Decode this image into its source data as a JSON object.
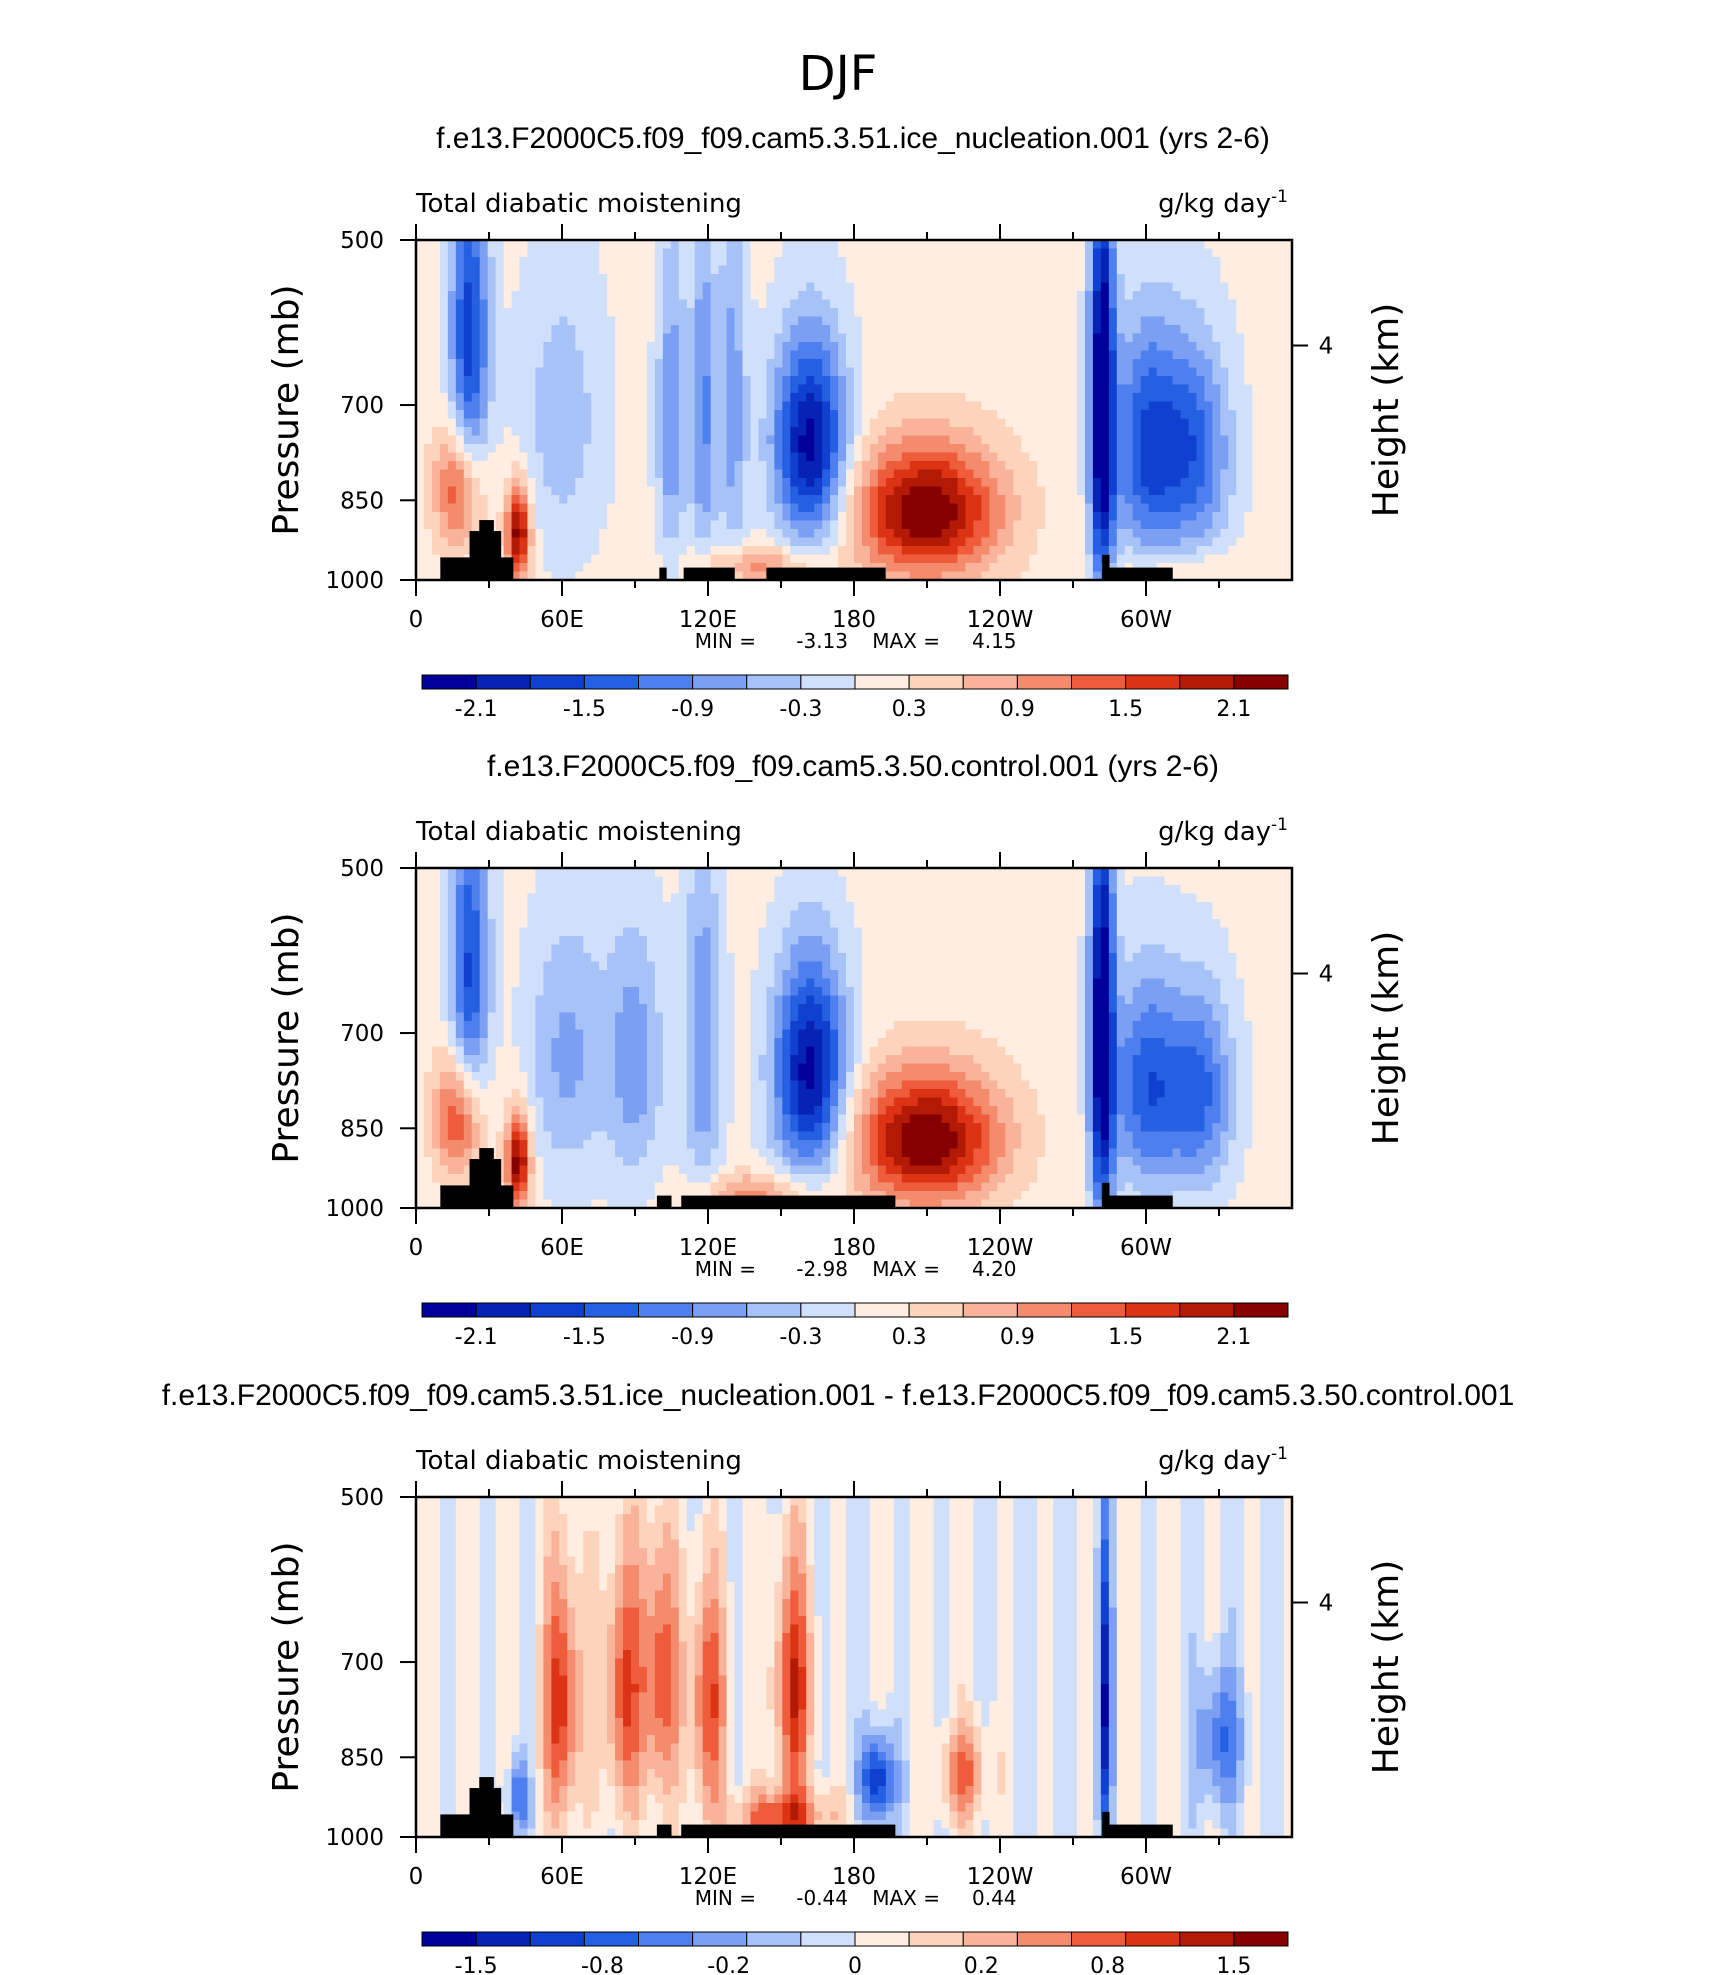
{
  "page_title": "DJF",
  "chart_data": [
    {
      "type": "heatmap",
      "title": "f.e13.F2000C5.f09_f09.cam5.3.51.ice_nucleation.001 (yrs 2-6)",
      "left_string": "Total diabatic moistening",
      "units": "g/kg day",
      "units_exp": "-1",
      "ylabel": "Pressure (mb)",
      "ylabel_right": "Height (km)",
      "yticks": [
        500,
        700,
        850,
        1000
      ],
      "yticks_right": [
        "4"
      ],
      "xticks": [
        "0",
        "60E",
        "120E",
        "180",
        "120W",
        "60W"
      ],
      "min_label": "MIN =",
      "min": "-3.13",
      "max_label": "MAX =",
      "max": "4.15",
      "colorbar_labels": [
        "-2.1",
        "-1.5",
        "-0.9",
        "-0.3",
        "0.3",
        "0.9",
        "1.5",
        "2.1"
      ],
      "colorbar_colors": [
        "#01009a",
        "#0623b5",
        "#0f40cf",
        "#2560e2",
        "#4d7fee",
        "#7a9ff3",
        "#a7c2f7",
        "#d0e0fb",
        "#feede0",
        "#fdd3bc",
        "#f9b39b",
        "#f48b6c",
        "#ee5c3c",
        "#db3314",
        "#b31a06",
        "#870000"
      ],
      "features": [
        {
          "type": "blob",
          "lon": 22,
          "p": 620,
          "dlon": 8,
          "dp": 230,
          "v": -1.8
        },
        {
          "type": "blob",
          "lon": 18,
          "p": 830,
          "dlon": 10,
          "dp": 110,
          "v": 1.6
        },
        {
          "type": "blob",
          "lon": 42,
          "p": 910,
          "dlon": 5,
          "dp": 90,
          "v": 2.2
        },
        {
          "type": "blob",
          "lon": 60,
          "p": 720,
          "dlon": 18,
          "dp": 220,
          "v": -0.6
        },
        {
          "type": "blob",
          "lon": 105,
          "p": 720,
          "dlon": 6,
          "dp": 240,
          "v": -1.0
        },
        {
          "type": "blob",
          "lon": 118,
          "p": 710,
          "dlon": 5,
          "dp": 260,
          "v": -1.1
        },
        {
          "type": "blob",
          "lon": 130,
          "p": 700,
          "dlon": 6,
          "dp": 260,
          "v": -0.9
        },
        {
          "type": "blob",
          "lon": 162,
          "p": 760,
          "dlon": 15,
          "dp": 160,
          "v": -2.4
        },
        {
          "type": "blob",
          "lon": 210,
          "p": 870,
          "dlon": 30,
          "dp": 120,
          "v": 2.3
        },
        {
          "type": "blob",
          "lon": 282,
          "p": 700,
          "dlon": 5,
          "dp": 320,
          "v": -2.8
        },
        {
          "type": "blob",
          "lon": 300,
          "p": 760,
          "dlon": 14,
          "dp": 180,
          "v": -1.6
        },
        {
          "type": "blob",
          "lon": 320,
          "p": 770,
          "dlon": 15,
          "dp": 170,
          "v": -1.4
        },
        {
          "type": "blob",
          "lon": 315,
          "p": 980,
          "dlon": 30,
          "dp": 40,
          "v": 0.4
        },
        {
          "type": "blob",
          "lon": 140,
          "p": 970,
          "dlon": 25,
          "dp": 40,
          "v": 0.9
        }
      ],
      "topography": [
        {
          "lon0": 10,
          "lon1": 40,
          "p": 955
        },
        {
          "lon0": 22,
          "lon1": 35,
          "p": 905
        },
        {
          "lon0": 26,
          "lon1": 32,
          "p": 885
        },
        {
          "lon0": 100,
          "lon1": 103,
          "p": 975
        },
        {
          "lon0": 110,
          "lon1": 131,
          "p": 975
        },
        {
          "lon0": 144,
          "lon1": 193,
          "p": 975
        },
        {
          "lon0": 282,
          "lon1": 311,
          "p": 975
        },
        {
          "lon0": 282,
          "lon1": 285,
          "p": 950
        }
      ]
    },
    {
      "type": "heatmap",
      "title": "f.e13.F2000C5.f09_f09.cam5.3.50.control.001 (yrs 2-6)",
      "left_string": "Total diabatic moistening",
      "units": "g/kg day",
      "units_exp": "-1",
      "ylabel": "Pressure (mb)",
      "ylabel_right": "Height (km)",
      "yticks": [
        500,
        700,
        850,
        1000
      ],
      "yticks_right": [
        "4"
      ],
      "xticks": [
        "0",
        "60E",
        "120E",
        "180",
        "120W",
        "60W"
      ],
      "min_label": "MIN =",
      "min": "-2.98",
      "max_label": "MAX =",
      "max": "4.20",
      "colorbar_labels": [
        "-2.1",
        "-1.5",
        "-0.9",
        "-0.3",
        "0.3",
        "0.9",
        "1.5",
        "2.1"
      ],
      "colorbar_colors": [
        "#01009a",
        "#0623b5",
        "#0f40cf",
        "#2560e2",
        "#4d7fee",
        "#7a9ff3",
        "#a7c2f7",
        "#d0e0fb",
        "#feede0",
        "#fdd3bc",
        "#f9b39b",
        "#f48b6c",
        "#ee5c3c",
        "#db3314",
        "#b31a06",
        "#870000"
      ],
      "features": [
        {
          "type": "blob",
          "lon": 22,
          "p": 630,
          "dlon": 8,
          "dp": 220,
          "v": -1.7
        },
        {
          "type": "blob",
          "lon": 18,
          "p": 830,
          "dlon": 10,
          "dp": 110,
          "v": 1.7
        },
        {
          "type": "blob",
          "lon": 42,
          "p": 910,
          "dlon": 5,
          "dp": 90,
          "v": 2.2
        },
        {
          "type": "blob",
          "lon": 62,
          "p": 730,
          "dlon": 16,
          "dp": 200,
          "v": -0.8
        },
        {
          "type": "blob",
          "lon": 90,
          "p": 740,
          "dlon": 12,
          "dp": 200,
          "v": -0.9
        },
        {
          "type": "blob",
          "lon": 118,
          "p": 710,
          "dlon": 8,
          "dp": 260,
          "v": -1.0
        },
        {
          "type": "blob",
          "lon": 162,
          "p": 760,
          "dlon": 15,
          "dp": 170,
          "v": -2.4
        },
        {
          "type": "blob",
          "lon": 210,
          "p": 870,
          "dlon": 30,
          "dp": 120,
          "v": 2.3
        },
        {
          "type": "blob",
          "lon": 282,
          "p": 700,
          "dlon": 5,
          "dp": 320,
          "v": -2.7
        },
        {
          "type": "blob",
          "lon": 300,
          "p": 780,
          "dlon": 14,
          "dp": 170,
          "v": -1.5
        },
        {
          "type": "blob",
          "lon": 322,
          "p": 790,
          "dlon": 14,
          "dp": 160,
          "v": -1.4
        },
        {
          "type": "blob",
          "lon": 140,
          "p": 970,
          "dlon": 25,
          "dp": 40,
          "v": 0.9
        }
      ],
      "topography": [
        {
          "lon0": 10,
          "lon1": 40,
          "p": 955
        },
        {
          "lon0": 22,
          "lon1": 35,
          "p": 905
        },
        {
          "lon0": 26,
          "lon1": 32,
          "p": 885
        },
        {
          "lon0": 99,
          "lon1": 105,
          "p": 975
        },
        {
          "lon0": 109,
          "lon1": 197,
          "p": 975
        },
        {
          "lon0": 282,
          "lon1": 311,
          "p": 975
        },
        {
          "lon0": 282,
          "lon1": 285,
          "p": 950
        }
      ]
    },
    {
      "type": "heatmap",
      "title": "f.e13.F2000C5.f09_f09.cam5.3.51.ice_nucleation.001 - f.e13.F2000C5.f09_f09.cam5.3.50.control.001",
      "left_string": "Total diabatic moistening",
      "units": "g/kg day",
      "units_exp": "-1",
      "ylabel": "Pressure (mb)",
      "ylabel_right": "Height (km)",
      "yticks": [
        500,
        700,
        850,
        1000
      ],
      "yticks_right": [
        "4"
      ],
      "xticks": [
        "0",
        "60E",
        "120E",
        "180",
        "120W",
        "60W"
      ],
      "min_label": "MIN =",
      "min": "-0.44",
      "max_label": "MAX =",
      "max": "0.44",
      "colorbar_labels": [
        "-1.5",
        "-0.8",
        "-0.2",
        "0",
        "0.2",
        "0.8",
        "1.5"
      ],
      "colorbar_colors": [
        "#01009a",
        "#0623b5",
        "#0f40cf",
        "#2560e2",
        "#4d7fee",
        "#7a9ff3",
        "#a7c2f7",
        "#d0e0fb",
        "#feede0",
        "#fdd3bc",
        "#f9b39b",
        "#f48b6c",
        "#ee5c3c",
        "#db3314",
        "#b31a06",
        "#870000"
      ],
      "features": [
        {
          "type": "blob",
          "lon": 60,
          "p": 760,
          "dlon": 8,
          "dp": 200,
          "v": 0.35
        },
        {
          "type": "blob",
          "lon": 85,
          "p": 740,
          "dlon": 8,
          "dp": 200,
          "v": 0.3
        },
        {
          "type": "blob",
          "lon": 100,
          "p": 720,
          "dlon": 8,
          "dp": 200,
          "v": 0.3
        },
        {
          "type": "blob",
          "lon": 120,
          "p": 760,
          "dlon": 8,
          "dp": 180,
          "v": 0.3
        },
        {
          "type": "blob",
          "lon": 155,
          "p": 740,
          "dlon": 8,
          "dp": 190,
          "v": 0.35
        },
        {
          "type": "blob",
          "lon": 190,
          "p": 890,
          "dlon": 7,
          "dp": 80,
          "v": -0.4
        },
        {
          "type": "blob",
          "lon": 225,
          "p": 880,
          "dlon": 10,
          "dp": 90,
          "v": 0.25
        },
        {
          "type": "blob",
          "lon": 283,
          "p": 760,
          "dlon": 3,
          "dp": 260,
          "v": -0.4
        },
        {
          "type": "blob",
          "lon": 330,
          "p": 820,
          "dlon": 10,
          "dp": 120,
          "v": -0.25
        },
        {
          "type": "blob",
          "lon": 42,
          "p": 920,
          "dlon": 4,
          "dp": 70,
          "v": -0.3
        },
        {
          "type": "blob",
          "lon": 150,
          "p": 960,
          "dlon": 20,
          "dp": 50,
          "v": 0.3
        }
      ],
      "topography": [
        {
          "lon0": 10,
          "lon1": 40,
          "p": 955
        },
        {
          "lon0": 22,
          "lon1": 35,
          "p": 905
        },
        {
          "lon0": 26,
          "lon1": 32,
          "p": 885
        },
        {
          "lon0": 99,
          "lon1": 105,
          "p": 975
        },
        {
          "lon0": 109,
          "lon1": 197,
          "p": 975
        },
        {
          "lon0": 282,
          "lon1": 311,
          "p": 975
        },
        {
          "lon0": 282,
          "lon1": 285,
          "p": 950
        }
      ]
    }
  ]
}
